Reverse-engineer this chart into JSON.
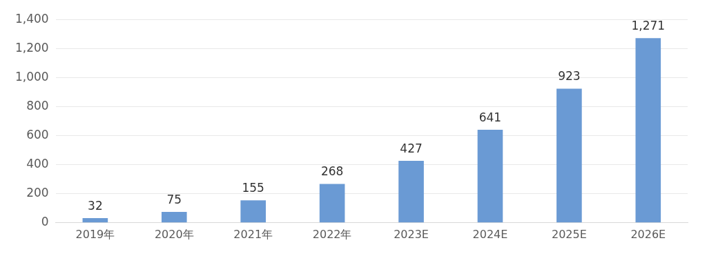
{
  "chart_data": {
    "type": "bar",
    "categories": [
      "2019年",
      "2020年",
      "2021年",
      "2022年",
      "2023E",
      "2024E",
      "2025E",
      "2026E"
    ],
    "values": [
      32,
      75,
      155,
      268,
      427,
      641,
      923,
      1271
    ],
    "color": "#6a9ad4",
    "ylim": [
      0,
      1400
    ],
    "yticks": [
      0,
      {
        "value": 200,
        "label": "200"
      },
      {
        "value": 400,
        "label": "400"
      },
      {
        "value": 600,
        "label": "600"
      },
      {
        "value": 800,
        "label": "800"
      },
      {
        "value": 1000,
        "label": "1,000"
      },
      {
        "value": 1200,
        "label": "1,200"
      },
      {
        "value": 1400,
        "label": "1,400"
      }
    ],
    "value_labels": [
      "32",
      "75",
      "155",
      "268",
      "427",
      "641",
      "923",
      "1,271"
    ],
    "grid": "y",
    "legend": false
  }
}
